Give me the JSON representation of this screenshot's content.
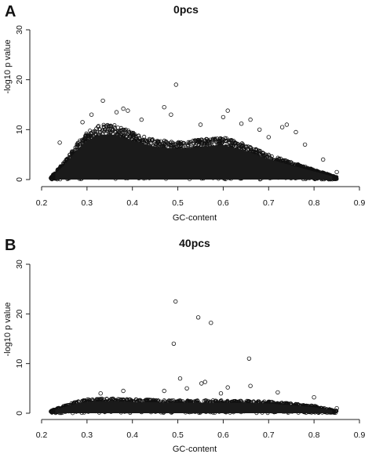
{
  "chart_data": [
    {
      "panel_label": "A",
      "type": "scatter",
      "title": "0pcs",
      "xlabel": "GC-content",
      "ylabel": "-log10 p value",
      "xlim": [
        0.2,
        0.9
      ],
      "ylim": [
        0,
        30
      ],
      "xticks": [
        0.2,
        0.3,
        0.4,
        0.5,
        0.6,
        0.7,
        0.8,
        0.9
      ],
      "yticks": [
        0,
        10,
        20,
        30
      ],
      "xtick_labels": [
        "0.2",
        "0.3",
        "0.4",
        "0.5",
        "0.6",
        "0.7",
        "0.8",
        "0.9"
      ],
      "ytick_labels": [
        "0",
        "10",
        "20",
        "30"
      ],
      "grid": false,
      "marker": "open-circle",
      "dense_band": {
        "x": [
          0.22,
          0.25,
          0.28,
          0.3,
          0.33,
          0.36,
          0.4,
          0.45,
          0.5,
          0.55,
          0.6,
          0.65,
          0.7,
          0.75,
          0.8,
          0.85
        ],
        "upper": [
          0.5,
          3.5,
          7.5,
          9.5,
          11,
          11,
          9.5,
          8,
          7.5,
          8,
          8.5,
          7,
          5,
          3.5,
          2,
          0.5
        ]
      },
      "points": [
        {
          "x": 0.496,
          "y": 19
        },
        {
          "x": 0.335,
          "y": 15.8
        },
        {
          "x": 0.38,
          "y": 14.2
        },
        {
          "x": 0.47,
          "y": 14.5
        },
        {
          "x": 0.61,
          "y": 13.8
        },
        {
          "x": 0.365,
          "y": 13.5
        },
        {
          "x": 0.39,
          "y": 13.8
        },
        {
          "x": 0.31,
          "y": 13.0
        },
        {
          "x": 0.485,
          "y": 13.0
        },
        {
          "x": 0.6,
          "y": 12.5
        },
        {
          "x": 0.66,
          "y": 12.0
        },
        {
          "x": 0.74,
          "y": 11.0
        },
        {
          "x": 0.64,
          "y": 11.2
        },
        {
          "x": 0.73,
          "y": 10.5
        },
        {
          "x": 0.68,
          "y": 10.0
        },
        {
          "x": 0.76,
          "y": 9.5
        },
        {
          "x": 0.7,
          "y": 8.5
        },
        {
          "x": 0.78,
          "y": 7.0
        },
        {
          "x": 0.24,
          "y": 7.4
        },
        {
          "x": 0.55,
          "y": 11.0
        },
        {
          "x": 0.42,
          "y": 12.0
        },
        {
          "x": 0.29,
          "y": 11.5
        },
        {
          "x": 0.82,
          "y": 4.0
        },
        {
          "x": 0.85,
          "y": 1.5
        },
        {
          "x": 0.225,
          "y": 0.3
        }
      ]
    },
    {
      "panel_label": "B",
      "type": "scatter",
      "title": "40pcs",
      "xlabel": "GC-content",
      "ylabel": "-log10 p value",
      "xlim": [
        0.2,
        0.9
      ],
      "ylim": [
        0,
        30
      ],
      "xticks": [
        0.2,
        0.3,
        0.4,
        0.5,
        0.6,
        0.7,
        0.8,
        0.9
      ],
      "yticks": [
        0,
        10,
        20,
        30
      ],
      "xtick_labels": [
        "0.2",
        "0.3",
        "0.4",
        "0.5",
        "0.6",
        "0.7",
        "0.8",
        "0.9"
      ],
      "ytick_labels": [
        "0",
        "10",
        "20",
        "30"
      ],
      "grid": false,
      "marker": "open-circle",
      "dense_band": {
        "x": [
          0.22,
          0.25,
          0.28,
          0.3,
          0.35,
          0.4,
          0.5,
          0.6,
          0.7,
          0.8,
          0.85
        ],
        "upper": [
          0.5,
          1.5,
          2.5,
          2.8,
          3.0,
          2.8,
          2.6,
          2.6,
          2.4,
          1.5,
          0.5
        ]
      },
      "points": [
        {
          "x": 0.495,
          "y": 22.5
        },
        {
          "x": 0.545,
          "y": 19.3
        },
        {
          "x": 0.573,
          "y": 18.2
        },
        {
          "x": 0.491,
          "y": 14.0
        },
        {
          "x": 0.657,
          "y": 11.0
        },
        {
          "x": 0.505,
          "y": 7.0
        },
        {
          "x": 0.56,
          "y": 6.3
        },
        {
          "x": 0.552,
          "y": 6.0
        },
        {
          "x": 0.66,
          "y": 5.5
        },
        {
          "x": 0.61,
          "y": 5.2
        },
        {
          "x": 0.52,
          "y": 5.0
        },
        {
          "x": 0.47,
          "y": 4.5
        },
        {
          "x": 0.38,
          "y": 4.5
        },
        {
          "x": 0.72,
          "y": 4.2
        },
        {
          "x": 0.33,
          "y": 4.0
        },
        {
          "x": 0.595,
          "y": 4.0
        },
        {
          "x": 0.8,
          "y": 3.2
        },
        {
          "x": 0.85,
          "y": 1.0
        }
      ]
    }
  ]
}
